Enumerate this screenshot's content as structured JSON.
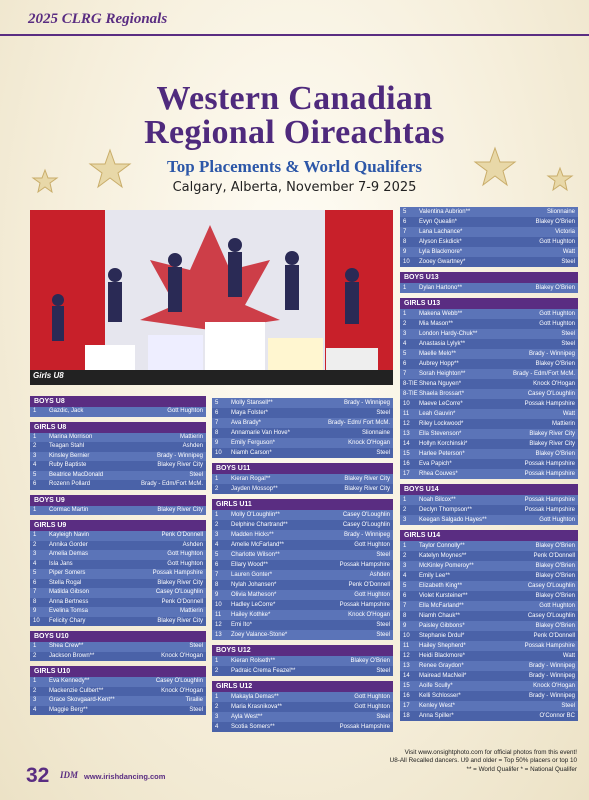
{
  "header": {
    "section": "2025 CLRG Regionals"
  },
  "title": {
    "line1": "Western Canadian",
    "line2": "Regional Oireachtas",
    "subtitle": "Top Placements & World Qualifers",
    "location": "Calgary, Alberta, November 7-9 2025"
  },
  "photo": {
    "caption": "Girls U8"
  },
  "columns": [
    {
      "blocks": [
        {
          "heading": "BOYS U8",
          "rows": [
            [
              "1",
              "Gazdic, Jack",
              "Gott Hughton"
            ]
          ]
        },
        {
          "heading": "GIRLS U8",
          "rows": [
            [
              "1",
              "Marina Morrison",
              "Mattierin"
            ],
            [
              "2",
              "Teagan Stahl",
              "Ashden"
            ],
            [
              "3",
              "Kinsley Bernier",
              "Brady - Winnipeg"
            ],
            [
              "4",
              "Ruby Baptiste",
              "Blakey River City"
            ],
            [
              "5",
              "Beatrice MacDonald",
              "Steel"
            ],
            [
              "6",
              "Rozenn Pollard",
              "Brady - Edm/Fort McM."
            ]
          ]
        },
        {
          "heading": "BOYS U9",
          "rows": [
            [
              "1",
              "Cormac Martin",
              "Blakey River City"
            ]
          ]
        },
        {
          "heading": "GIRLS U9",
          "rows": [
            [
              "1",
              "Kayleigh Navin",
              "Penk O'Donnell"
            ],
            [
              "2",
              "Annika Gorder",
              "Ashden"
            ],
            [
              "3",
              "Amelia Demas",
              "Gott Hughton"
            ],
            [
              "4",
              "Isla Jans",
              "Gott Hughton"
            ],
            [
              "5",
              "Piper Somers",
              "Possak Hampshire"
            ],
            [
              "6",
              "Stella Rogal",
              "Blakey River City"
            ],
            [
              "7",
              "Matilda Gibson",
              "Casey O'Loughlin"
            ],
            [
              "8",
              "Anna Bertness",
              "Penk O'Donnell"
            ],
            [
              "9",
              "Evelina Tomsa",
              "Mattierin"
            ],
            [
              "10",
              "Felicity Chary",
              "Blakey River City"
            ]
          ]
        },
        {
          "heading": "BOYS U10",
          "rows": [
            [
              "1",
              "Shea Crew**",
              "Steel"
            ],
            [
              "2",
              "Jackson Brown**",
              "Knock O'Hogan"
            ]
          ]
        },
        {
          "heading": "GIRLS U10",
          "rows": [
            [
              "1",
              "Eva Kennedy**",
              "Casey O'Loughlin"
            ],
            [
              "2",
              "Mackenzie Culbert**",
              "Knock O'Hogan"
            ],
            [
              "3",
              "Grace Skovgaard-Kent**",
              "Tirailie"
            ],
            [
              "4",
              "Maggie Berg**",
              "Steel"
            ]
          ]
        }
      ]
    },
    {
      "blocks": [
        {
          "rows": [
            [
              "5",
              "Molly Stansell**",
              "Brady - Winnipeg"
            ],
            [
              "6",
              "Maya Folster*",
              "Steel"
            ],
            [
              "7",
              "Ava Brady*",
              "Brady- Edm/ Fort McM."
            ],
            [
              "8",
              "Annamarie Van Hove*",
              "Slionnaine"
            ],
            [
              "9",
              "Emily Ferguson*",
              "Knock O'Hogan"
            ],
            [
              "10",
              "Niamh Carson*",
              "Steel"
            ]
          ]
        },
        {
          "heading": "BOYS U11",
          "rows": [
            [
              "1",
              "Kieran Rogal**",
              "Blakey River City"
            ],
            [
              "2",
              "Jayden Mossop**",
              "Blakey River City"
            ]
          ]
        },
        {
          "heading": "GIRLS U11",
          "rows": [
            [
              "1",
              "Molly O'Loughlin**",
              "Casey O'Loughlin"
            ],
            [
              "2",
              "Delphine Chartrand**",
              "Casey O'Loughlin"
            ],
            [
              "3",
              "Madden Hicks**",
              "Brady - Winnipeg"
            ],
            [
              "4",
              "Amelie McFarland**",
              "Gott Hughton"
            ],
            [
              "5",
              "Charlotte Wilson**",
              "Steel"
            ],
            [
              "6",
              "Ellary Wood**",
              "Possak Hampshire"
            ],
            [
              "7",
              "Lauren Gonter*",
              "Ashden"
            ],
            [
              "8",
              "Nylah Johansen*",
              "Penk O'Donnell"
            ],
            [
              "9",
              "Olivia Matheson*",
              "Gott Hughton"
            ],
            [
              "10",
              "Hadley LeCorre*",
              "Possak Hampshire"
            ],
            [
              "11",
              "Hailey Kothke*",
              "Knock O'Hogan"
            ],
            [
              "12",
              "Emi Ito*",
              "Steel"
            ],
            [
              "13",
              "Zoey Valance-Stone*",
              "Steel"
            ]
          ]
        },
        {
          "heading": "BOYS U12",
          "rows": [
            [
              "1",
              "Kieran Rolseth**",
              "Blakey O'Brien"
            ],
            [
              "2",
              "Padraic Crema Feazel**",
              "Steel"
            ]
          ]
        },
        {
          "heading": "GIRLS U12",
          "rows": [
            [
              "1",
              "Makayla Demas**",
              "Gott Hughton"
            ],
            [
              "2",
              "Maria Krasnikova**",
              "Gott Hughton"
            ],
            [
              "3",
              "Ayla West**",
              "Steel"
            ],
            [
              "4",
              "Scotia Somers**",
              "Possak Hampshire"
            ]
          ]
        }
      ]
    },
    {
      "blocks": [
        {
          "rows": [
            [
              "5",
              "Valentina Aubrion**",
              "Slionnaine"
            ],
            [
              "6",
              "Evyn Quealin*",
              "Blakey O'Brien"
            ],
            [
              "7",
              "Lana Lachance*",
              "Victoria"
            ],
            [
              "8",
              "Alyson Eskdick*",
              "Gott Hughton"
            ],
            [
              "9",
              "Lyla Blackmore*",
              "Watt"
            ],
            [
              "10",
              "Zooey Gwartney*",
              "Steel"
            ]
          ]
        },
        {
          "heading": "BOYS U13",
          "rows": [
            [
              "1",
              "Dylan Hartono**",
              "Blakey O'Brien"
            ]
          ]
        },
        {
          "heading": "GIRLS U13",
          "rows": [
            [
              "1",
              "Makena Webb**",
              "Gott Hughton"
            ],
            [
              "2",
              "Mia Mason**",
              "Gott Hughton"
            ],
            [
              "3",
              "London Hardy-Chuk**",
              "Steel"
            ],
            [
              "4",
              "Anastasia Lylyk**",
              "Steel"
            ],
            [
              "5",
              "Maelle Melo**",
              "Brady - Winnipeg"
            ],
            [
              "6",
              "Aubrey Hopp**",
              "Blakey O'Brien"
            ],
            [
              "7",
              "Sorah Heighton**",
              "Brady - Edm/Fort McM."
            ],
            [
              "8-TIE",
              "Shena Nguyen*",
              "Knock O'Hogan"
            ],
            [
              "8-TIE",
              "Shaela Brossart*",
              "Casey O'Loughlin"
            ],
            [
              "10",
              "Maeve LeCorre*",
              "Possak Hampshire"
            ],
            [
              "11",
              "Leah Gauvin*",
              "Watt"
            ],
            [
              "12",
              "Riley Lockwood*",
              "Mattierin"
            ],
            [
              "13",
              "Ella Stevenson*",
              "Blakey River City"
            ],
            [
              "14",
              "Hollyn Korchinski*",
              "Blakey River City"
            ],
            [
              "15",
              "Harlee Peterson*",
              "Blakey O'Brien"
            ],
            [
              "16",
              "Eva Papich*",
              "Possak Hampshire"
            ],
            [
              "17",
              "Rhea Couves*",
              "Possak Hampshire"
            ]
          ]
        },
        {
          "heading": "BOYS U14",
          "rows": [
            [
              "1",
              "Noah Bilcox**",
              "Possak Hampshire"
            ],
            [
              "2",
              "Declyn Thompson**",
              "Possak Hampshire"
            ],
            [
              "3",
              "Keegan Salgado Hayes**",
              "Gott Hughton"
            ]
          ]
        },
        {
          "heading": "GIRLS U14",
          "rows": [
            [
              "1",
              "Taylor Connolly**",
              "Blakey O'Brien"
            ],
            [
              "2",
              "Katelyn Moynes**",
              "Penk O'Donnell"
            ],
            [
              "3",
              "McKinley Pomeroy**",
              "Blakey O'Brien"
            ],
            [
              "4",
              "Emily Lee**",
              "Blakey O'Brien"
            ],
            [
              "5",
              "Elizabeth King**",
              "Casey O'Loughlin"
            ],
            [
              "6",
              "Violet Kursteiner**",
              "Blakey O'Brien"
            ],
            [
              "7",
              "Ella McFarland**",
              "Gott Hughton"
            ],
            [
              "8",
              "Niamh Chauk**",
              "Casey O'Loughlin"
            ],
            [
              "9",
              "Paisley Gibbons*",
              "Blakey O'Brien"
            ],
            [
              "10",
              "Stephanie Drdul*",
              "Penk O'Donnell"
            ],
            [
              "11",
              "Hailey Shepherd*",
              "Possak Hampshire"
            ],
            [
              "12",
              "Heidi Blackmore*",
              "Watt"
            ],
            [
              "13",
              "Renee Graydon*",
              "Brady - Winnipeg"
            ],
            [
              "14",
              "Mairead MacNeil*",
              "Brady - Winnipeg"
            ],
            [
              "15",
              "Aoife Scully*",
              "Knock O'Hogan"
            ],
            [
              "16",
              "Kelli Schlosser*",
              "Brady - Winnipeg"
            ],
            [
              "17",
              "Kenley West*",
              "Steel"
            ],
            [
              "18",
              "Anna Spiller*",
              "O'Connor BC"
            ]
          ]
        }
      ]
    }
  ],
  "notes": [
    "Visit www.onsightphoto.com for official photos from this event!",
    "U8-All Recalled dancers. U9 and older = Top 50% placers or top 10",
    "** = World Qualifer  * = National Qualifer"
  ],
  "footer": {
    "page": "32",
    "logo": "IDM",
    "url": "www.irishdancing.com"
  }
}
